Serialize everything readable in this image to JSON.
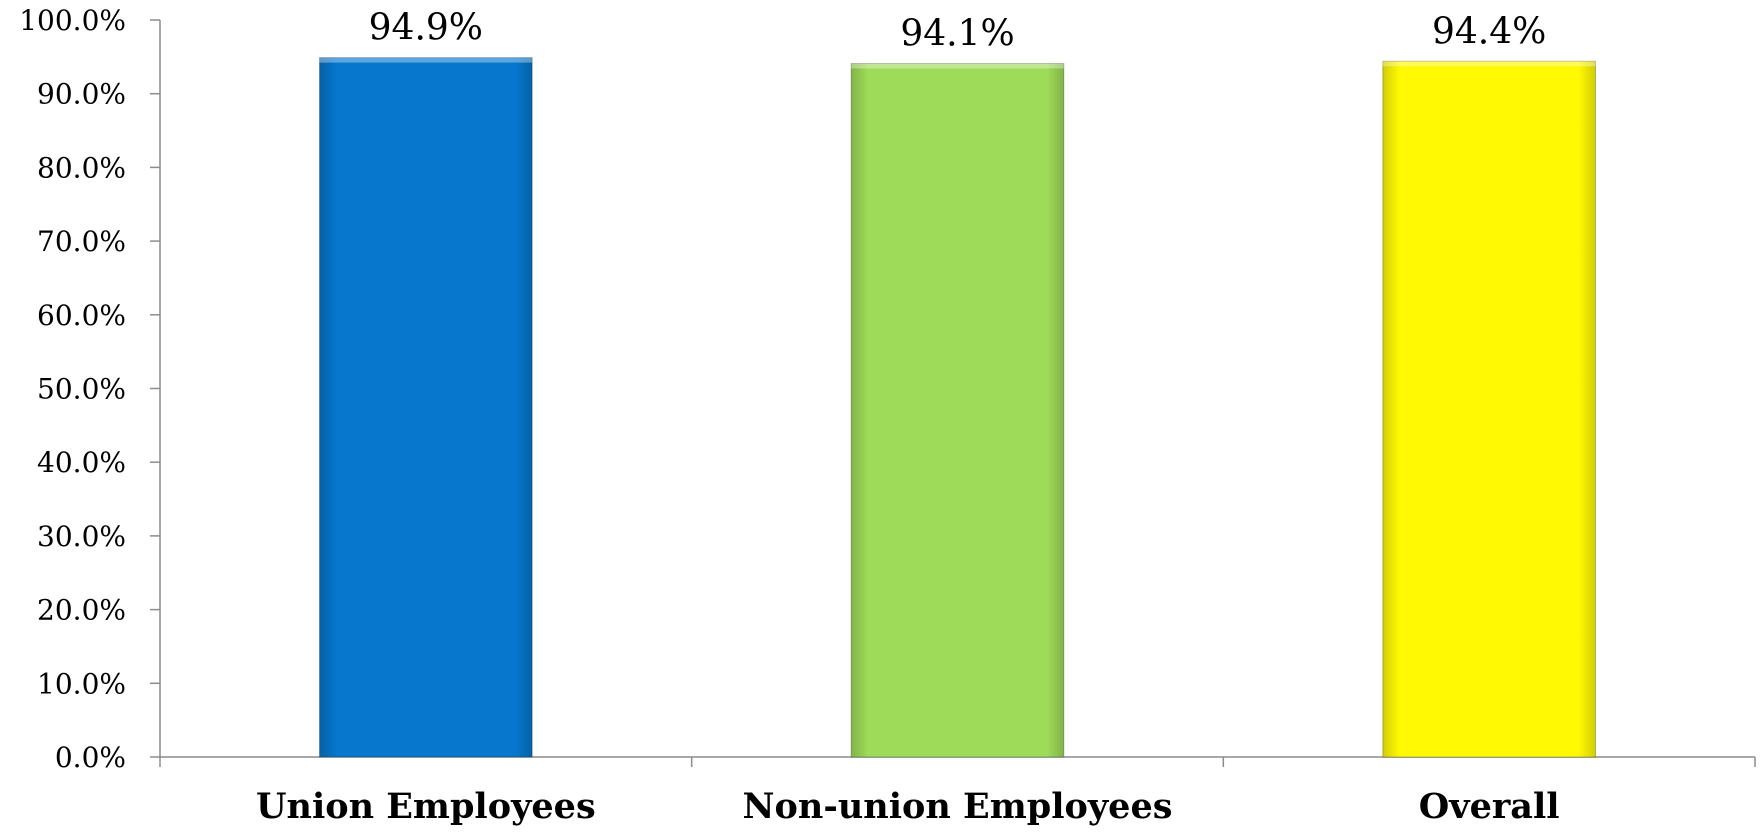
{
  "chart_data": {
    "type": "bar",
    "title": "",
    "xlabel": "",
    "ylabel": "",
    "categories": [
      "Union Employees",
      "Non-union Employees",
      "Overall"
    ],
    "values": [
      94.9,
      94.1,
      94.4
    ],
    "value_labels": [
      "94.9%",
      "94.1%",
      "94.4%"
    ],
    "bar_colors": [
      "#0677CD",
      "#9EDB58",
      "#FFFA03"
    ],
    "ylim": [
      0,
      100
    ],
    "yticks": [
      0,
      10,
      20,
      30,
      40,
      50,
      60,
      70,
      80,
      90,
      100
    ],
    "ytick_labels": [
      "0.0%",
      "10.0%",
      "20.0%",
      "30.0%",
      "40.0%",
      "50.0%",
      "60.0%",
      "70.0%",
      "80.0%",
      "90.0%",
      "100.0%"
    ],
    "grid": false,
    "legend": "none"
  }
}
